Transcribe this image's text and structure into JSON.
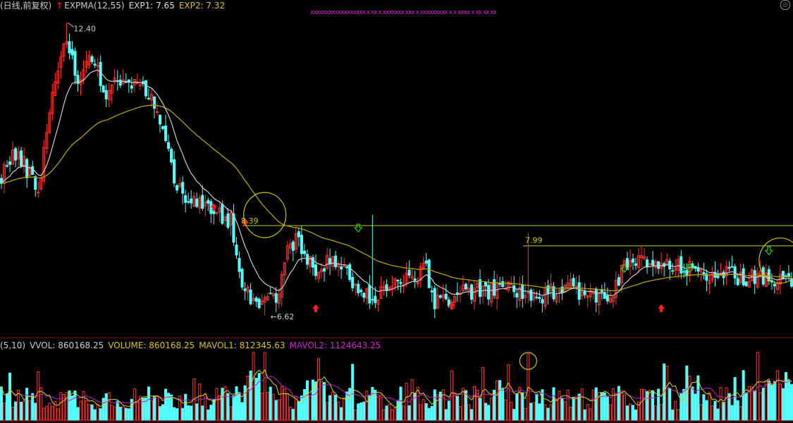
{
  "header": {
    "period": "(日线,前复权)",
    "indicator": "EXPMA(12,55)",
    "exp1": "EXP1: 7.65",
    "exp2": "EXP2: 7.32",
    "arrow_glyph": "↑"
  },
  "volume_header": {
    "params": "(5,10)",
    "vvol": "VVOL: 860168.25",
    "volume": "VOLUME: 860168.25",
    "mavol1": "MAVOL1: 812345.63",
    "mavol2": "MAVOL2: 1124643.25"
  },
  "top_marks": "xxxxxxxxxxxxxxxxxx  x   xx  x         xxxxxxx  xxx  x   xxxxxxxxx      x   x   xxxx  x      xx   xx                  xx",
  "colors": {
    "up": "#ff3232",
    "down": "#54ffff",
    "exp1": "#cccccc",
    "exp2": "#b0a000",
    "level": "#c8c800",
    "vol_ma1": "#e0d000",
    "vol_ma2": "#c020c0",
    "annotation": "#c8c800",
    "header_text": "#cccccc",
    "exp1_text": "#dddddd",
    "exp2_text": "#e0c000",
    "mavol1_text": "#e0c000",
    "mavol2_text": "#d020d0"
  },
  "chart_data": {
    "type": "candlestick",
    "y_range": [
      6.3,
      12.6
    ],
    "annotations": {
      "high_label": "12.40",
      "low_label": "←6.62",
      "level1_label": "8.39",
      "level2_label": "7.99"
    },
    "levels": [
      8.39,
      7.99
    ],
    "anchors": [
      {
        "i": 0,
        "p": 9.4
      },
      {
        "i": 4,
        "p": 9.8
      },
      {
        "i": 8,
        "p": 9.6
      },
      {
        "i": 13,
        "p": 9.1
      },
      {
        "i": 18,
        "p": 11.0
      },
      {
        "i": 22,
        "p": 12.1
      },
      {
        "i": 27,
        "p": 11.3
      },
      {
        "i": 32,
        "p": 11.8
      },
      {
        "i": 36,
        "p": 11.0
      },
      {
        "i": 41,
        "p": 11.3
      },
      {
        "i": 46,
        "p": 11.1
      },
      {
        "i": 50,
        "p": 11.2
      },
      {
        "i": 55,
        "p": 10.7
      },
      {
        "i": 58,
        "p": 10.0
      },
      {
        "i": 62,
        "p": 9.2
      },
      {
        "i": 66,
        "p": 8.95
      },
      {
        "i": 71,
        "p": 8.75
      },
      {
        "i": 77,
        "p": 8.6
      },
      {
        "i": 81,
        "p": 8.5
      },
      {
        "i": 85,
        "p": 7.3
      },
      {
        "i": 89,
        "p": 6.9
      },
      {
        "i": 94,
        "p": 6.95
      },
      {
        "i": 98,
        "p": 7.05
      },
      {
        "i": 101,
        "p": 7.9
      },
      {
        "i": 104,
        "p": 8.15
      },
      {
        "i": 108,
        "p": 7.65
      },
      {
        "i": 112,
        "p": 7.55
      },
      {
        "i": 117,
        "p": 7.7
      },
      {
        "i": 122,
        "p": 7.45
      },
      {
        "i": 127,
        "p": 7.0
      },
      {
        "i": 132,
        "p": 7.0
      },
      {
        "i": 136,
        "p": 7.2
      },
      {
        "i": 141,
        "p": 7.25
      },
      {
        "i": 146,
        "p": 7.4
      },
      {
        "i": 150,
        "p": 7.5
      },
      {
        "i": 153,
        "p": 6.9
      },
      {
        "i": 157,
        "p": 6.95
      },
      {
        "i": 162,
        "p": 7.05
      },
      {
        "i": 167,
        "p": 7.1
      },
      {
        "i": 172,
        "p": 7.05
      },
      {
        "i": 177,
        "p": 7.2
      },
      {
        "i": 181,
        "p": 7.15
      },
      {
        "i": 185,
        "p": 7.0
      },
      {
        "i": 189,
        "p": 6.85
      },
      {
        "i": 192,
        "p": 7.0
      },
      {
        "i": 196,
        "p": 7.15
      },
      {
        "i": 200,
        "p": 7.3
      },
      {
        "i": 203,
        "p": 7.15
      },
      {
        "i": 207,
        "p": 6.95
      },
      {
        "i": 212,
        "p": 7.0
      },
      {
        "i": 216,
        "p": 7.1
      },
      {
        "i": 220,
        "p": 7.55
      },
      {
        "i": 224,
        "p": 7.7
      },
      {
        "i": 226,
        "p": 7.65
      }
    ],
    "signals_up": [
      {
        "i": 75,
        "p": 8.75
      },
      {
        "i": 86,
        "p": 8.45
      },
      {
        "i": 111,
        "p": 6.75
      },
      {
        "i": 159,
        "p": 6.8
      },
      {
        "i": 233,
        "p": 6.75
      }
    ],
    "signals_down": [
      {
        "i": 126,
        "p": 8.35
      },
      {
        "i": 220,
        "p": 7.55
      },
      {
        "i": 243,
        "p": 7.55
      },
      {
        "i": 271,
        "p": 7.9
      }
    ],
    "circles": [
      {
        "i": 93,
        "p": 8.6
      },
      {
        "i": 275,
        "p": 7.7
      }
    ],
    "volume_circle_i": 186
  }
}
